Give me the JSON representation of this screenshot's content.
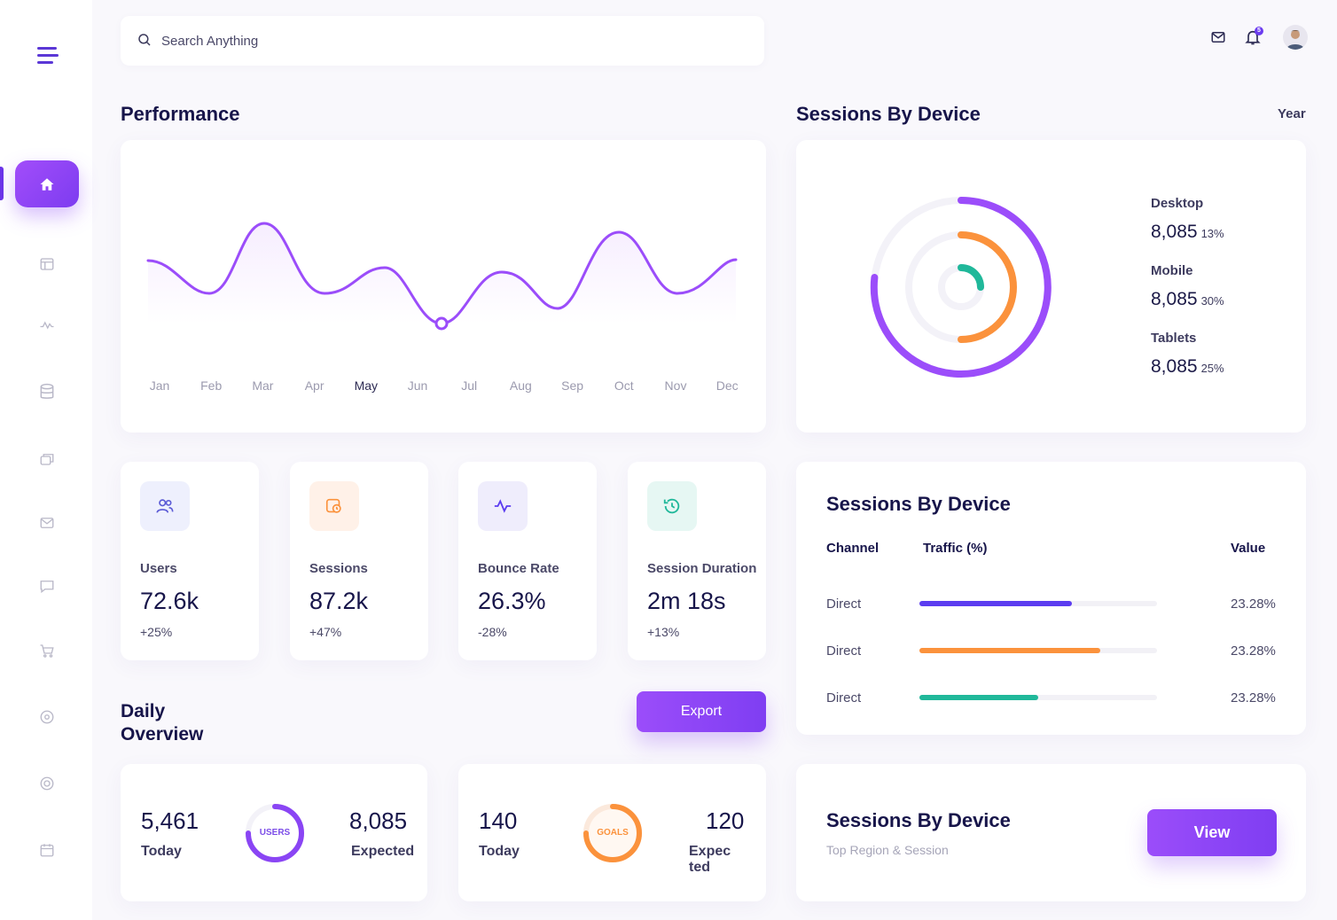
{
  "header": {
    "search_placeholder": "Search Anything"
  },
  "performance": {
    "title": "Performance",
    "months": [
      "Jan",
      "Feb",
      "Mar",
      "Apr",
      "May",
      "Jun",
      "Jul",
      "Aug",
      "Sep",
      "Oct",
      "Nov",
      "Dec"
    ],
    "active_month": "May"
  },
  "sessions_device": {
    "title": "Sessions By Device",
    "period": "Year",
    "devices": [
      {
        "label": "Desktop",
        "value": "8,085",
        "pct": "13%",
        "color": "#9b4dfa"
      },
      {
        "label": "Mobile",
        "value": "8,085",
        "pct": "30%",
        "color": "#fb923c"
      },
      {
        "label": "Tablets",
        "value": "8,085",
        "pct": "25%",
        "color": "#20b89a"
      }
    ]
  },
  "stats": [
    {
      "label": "Users",
      "value": "72.6k",
      "change": "+25%",
      "icon": "users-icon"
    },
    {
      "label": "Sessions",
      "value": "87.2k",
      "change": "+47%",
      "icon": "sessions-icon"
    },
    {
      "label": "Bounce Rate",
      "value": "26.3%",
      "change": "-28%",
      "icon": "activity-icon"
    },
    {
      "label": "Session Duration",
      "value": "2m 18s",
      "change": "+13%",
      "icon": "clock-icon"
    }
  ],
  "traffic": {
    "title": "Sessions By Device",
    "headers": {
      "channel": "Channel",
      "traffic": "Traffic (%)",
      "value": "Value"
    },
    "rows": [
      {
        "channel": "Direct",
        "value": "23.28%",
        "fill": 0.64,
        "color": "#5b3cf0"
      },
      {
        "channel": "Direct",
        "value": "23.28%",
        "fill": 0.76,
        "color": "#fb923c"
      },
      {
        "channel": "Direct",
        "value": "23.28%",
        "fill": 0.5,
        "color": "#20b89a"
      }
    ]
  },
  "daily": {
    "title_line1": "Daily",
    "title_line2": "Overview",
    "export_label": "Export",
    "users_card": {
      "today_value": "5,461",
      "today_label": "Today",
      "ring_label": "USERS",
      "expected_value": "8,085",
      "expected_label": "Expected",
      "ring_fill": 0.75
    },
    "goals_card": {
      "today_value": "140",
      "today_label": "Today",
      "ring_label": "GOALS",
      "expected_value": "120",
      "expected_label_1": "Expec",
      "expected_label_2": "ted",
      "ring_fill": 0.75
    }
  },
  "region": {
    "title": "Sessions By Device",
    "subtitle": "Top Region & Session",
    "view_label": "View"
  }
}
